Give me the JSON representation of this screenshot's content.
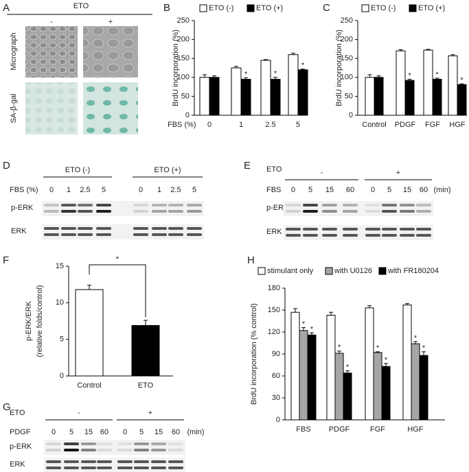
{
  "chart_data": [
    {
      "type": "bar",
      "panel": "B",
      "y_label": "BrdU incorporation (%)",
      "x_label": "FBS (%)",
      "categories": [
        "0",
        "1",
        "2.5",
        "5"
      ],
      "series": [
        {
          "name": "ETO (-)",
          "color": "#ffffff",
          "values": [
            100,
            125,
            145,
            160
          ],
          "errors": [
            7,
            4,
            2,
            4
          ],
          "labels": [
            null,
            null,
            null,
            null
          ]
        },
        {
          "name": "ETO (+)",
          "color": "#000000",
          "values": [
            100,
            95,
            95,
            120
          ],
          "errors": [
            4,
            4,
            5,
            2
          ],
          "labels": [
            null,
            "*",
            "*",
            "*"
          ]
        }
      ],
      "ylim": [
        0,
        250
      ],
      "yticks": [
        0,
        50,
        100,
        150,
        200,
        250
      ]
    },
    {
      "type": "bar",
      "panel": "C",
      "y_label": "BrdU incorporation (%)",
      "categories": [
        "Control",
        "PDGF",
        "FGF",
        "HGF"
      ],
      "series": [
        {
          "name": "ETO (-)",
          "color": "#ffffff",
          "values": [
            100,
            170,
            172,
            157
          ],
          "errors": [
            7,
            3,
            2,
            3
          ],
          "labels": [
            null,
            null,
            null,
            null
          ]
        },
        {
          "name": "ETO (+)",
          "color": "#000000",
          "values": [
            100,
            92,
            95,
            81
          ],
          "errors": [
            4,
            3,
            3,
            2
          ],
          "labels": [
            null,
            "*",
            "*",
            "*"
          ]
        }
      ],
      "ylim": [
        0,
        250
      ],
      "yticks": [
        0,
        50,
        100,
        150,
        200,
        250
      ]
    },
    {
      "type": "bar",
      "panel": "F",
      "y_label": [
        "p-ERK/ERK",
        "(relative folds/control)"
      ],
      "categories": [
        "Control",
        "ETO"
      ],
      "values": [
        11.8,
        6.9
      ],
      "errors": [
        0.6,
        0.7
      ],
      "colors": [
        "#ffffff",
        "#000000"
      ],
      "comparison_label": "*",
      "ylim": [
        0,
        15
      ],
      "yticks": [
        0,
        5,
        10,
        15
      ]
    },
    {
      "type": "bar",
      "panel": "H",
      "y_label": "BrdU incorporation (% control)",
      "categories": [
        "FBS",
        "PDGF",
        "FGF",
        "HGF"
      ],
      "series": [
        {
          "name": "stimulant only",
          "color": "#ffffff",
          "values": [
            147,
            143,
            153,
            157
          ],
          "errors": [
            5,
            4,
            3,
            2
          ],
          "labels": [
            null,
            null,
            null,
            null
          ]
        },
        {
          "name": "with U0126",
          "color": "#a6a6a6",
          "values": [
            122,
            91,
            92,
            104
          ],
          "errors": [
            4,
            3,
            1,
            3
          ],
          "labels": [
            "*",
            "*",
            "*",
            "*"
          ]
        },
        {
          "name": "with FR180204",
          "color": "#000000",
          "values": [
            116,
            64,
            73,
            88
          ],
          "errors": [
            3,
            3,
            4,
            5
          ],
          "labels": [
            "*",
            "*",
            "*",
            "*"
          ]
        }
      ],
      "ylim": [
        0,
        180
      ],
      "yticks": [
        0,
        30,
        60,
        90,
        120,
        150,
        180
      ]
    }
  ],
  "panel_a": {
    "panel": "A",
    "title": "ETO",
    "columns": [
      "-",
      "+"
    ],
    "rows": [
      "Micrograph",
      "SA-β-gal"
    ]
  },
  "blots": [
    {
      "panel": "D",
      "groups": [
        "ETO (-)",
        "ETO (+)"
      ],
      "lane_label": "FBS (%)",
      "lanes": [
        "0",
        "1",
        "2.5",
        "5",
        "0",
        "1",
        "2.5",
        "5"
      ],
      "rows": [
        "p-ERK",
        "ERK"
      ]
    },
    {
      "panel": "E",
      "group_label": "ETO",
      "groups": [
        "-",
        "+"
      ],
      "lane_label": "FBS",
      "lanes": [
        "0",
        "5",
        "15",
        "60",
        "0",
        "5",
        "15",
        "60"
      ],
      "unit": "(min)",
      "rows": [
        "p-ERK",
        "ERK"
      ]
    },
    {
      "panel": "G",
      "group_label": "ETO",
      "groups": [
        "-",
        "+"
      ],
      "lane_label": "PDGF",
      "lanes": [
        "0",
        "5",
        "15",
        "60",
        "0",
        "5",
        "15",
        "60"
      ],
      "unit": "(min)",
      "rows": [
        "p-ERK",
        "ERK"
      ]
    }
  ]
}
